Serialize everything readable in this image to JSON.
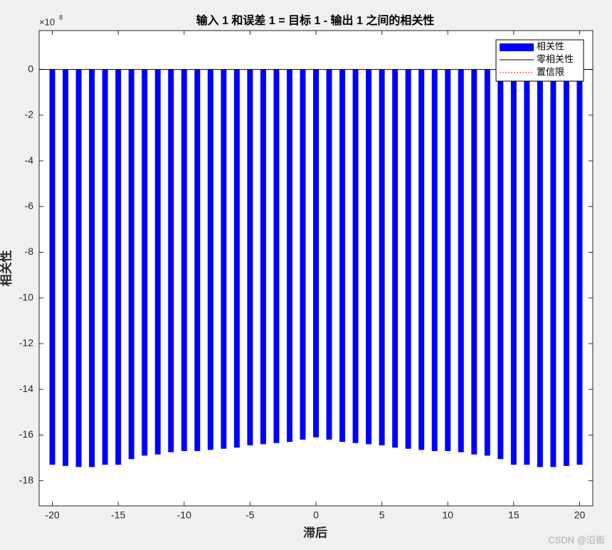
{
  "chart_data": {
    "type": "bar",
    "title": "输入 1 和误差 1 = 目标 1 - 输出 1 之间的相关性",
    "x_label": "滞后",
    "y_label": "相关性",
    "y_multiplier": {
      "base": "×10",
      "exponent": "8"
    },
    "x": [
      -20,
      -19,
      -18,
      -17,
      -16,
      -15,
      -14,
      -13,
      -12,
      -11,
      -10,
      -9,
      -8,
      -7,
      -6,
      -5,
      -4,
      -3,
      -2,
      -1,
      0,
      1,
      2,
      3,
      4,
      5,
      6,
      7,
      8,
      9,
      10,
      11,
      12,
      13,
      14,
      15,
      16,
      17,
      18,
      19,
      20
    ],
    "series": [
      {
        "name": "相关性",
        "color": "#0000ff",
        "values": [
          -17.3,
          -17.35,
          -17.4,
          -17.4,
          -17.3,
          -17.3,
          -17.05,
          -16.9,
          -16.85,
          -16.75,
          -16.7,
          -16.7,
          -16.65,
          -16.6,
          -16.55,
          -16.45,
          -16.4,
          -16.35,
          -16.3,
          -16.2,
          -16.1,
          -16.2,
          -16.3,
          -16.35,
          -16.4,
          -16.45,
          -16.55,
          -16.6,
          -16.65,
          -16.7,
          -16.7,
          -16.75,
          -16.85,
          -16.9,
          -17.05,
          -17.3,
          -17.3,
          -17.4,
          -17.4,
          -17.35,
          -17.3
        ]
      }
    ],
    "reference_lines": [
      {
        "name": "零相关性",
        "color": "#000000",
        "value": 0
      }
    ],
    "confidence_limits": {
      "name": "置信限",
      "color": "#ff0000"
    },
    "xlim": [
      -21,
      21
    ],
    "xticks": [
      -20,
      -15,
      -10,
      -5,
      0,
      5,
      10,
      15,
      20
    ],
    "ylim": [
      -19.1,
      1.7
    ],
    "yticks": [
      0,
      -2,
      -4,
      -6,
      -8,
      -10,
      -12,
      -14,
      -16,
      -18
    ],
    "legend": "upper right",
    "watermark": "CSDN @沿街"
  }
}
